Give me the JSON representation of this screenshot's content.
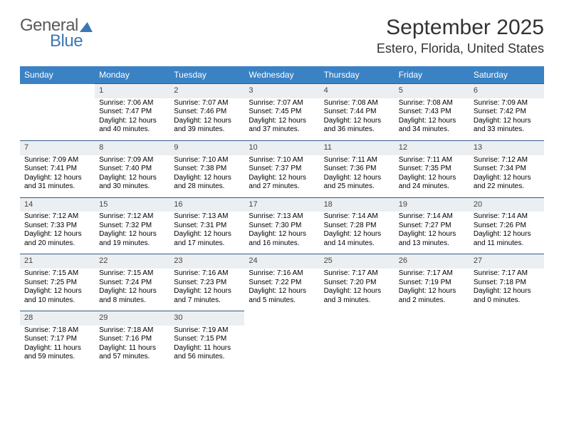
{
  "brand": {
    "part1": "General",
    "part2": "Blue",
    "color_primary": "#3a78b5",
    "color_text": "#5a5a5a"
  },
  "header": {
    "month": "September 2025",
    "location": "Estero, Florida, United States"
  },
  "colors": {
    "header_bg": "#3a82c4",
    "header_text": "#ffffff",
    "daynum_bg": "#eceff1",
    "daynum_border": "#2f5d88",
    "body_bg": "#ffffff"
  },
  "weekdays": [
    "Sunday",
    "Monday",
    "Tuesday",
    "Wednesday",
    "Thursday",
    "Friday",
    "Saturday"
  ],
  "weeks": [
    [
      null,
      {
        "n": "1",
        "sr": "Sunrise: 7:06 AM",
        "ss": "Sunset: 7:47 PM",
        "d1": "Daylight: 12 hours",
        "d2": "and 40 minutes."
      },
      {
        "n": "2",
        "sr": "Sunrise: 7:07 AM",
        "ss": "Sunset: 7:46 PM",
        "d1": "Daylight: 12 hours",
        "d2": "and 39 minutes."
      },
      {
        "n": "3",
        "sr": "Sunrise: 7:07 AM",
        "ss": "Sunset: 7:45 PM",
        "d1": "Daylight: 12 hours",
        "d2": "and 37 minutes."
      },
      {
        "n": "4",
        "sr": "Sunrise: 7:08 AM",
        "ss": "Sunset: 7:44 PM",
        "d1": "Daylight: 12 hours",
        "d2": "and 36 minutes."
      },
      {
        "n": "5",
        "sr": "Sunrise: 7:08 AM",
        "ss": "Sunset: 7:43 PM",
        "d1": "Daylight: 12 hours",
        "d2": "and 34 minutes."
      },
      {
        "n": "6",
        "sr": "Sunrise: 7:09 AM",
        "ss": "Sunset: 7:42 PM",
        "d1": "Daylight: 12 hours",
        "d2": "and 33 minutes."
      }
    ],
    [
      {
        "n": "7",
        "sr": "Sunrise: 7:09 AM",
        "ss": "Sunset: 7:41 PM",
        "d1": "Daylight: 12 hours",
        "d2": "and 31 minutes."
      },
      {
        "n": "8",
        "sr": "Sunrise: 7:09 AM",
        "ss": "Sunset: 7:40 PM",
        "d1": "Daylight: 12 hours",
        "d2": "and 30 minutes."
      },
      {
        "n": "9",
        "sr": "Sunrise: 7:10 AM",
        "ss": "Sunset: 7:38 PM",
        "d1": "Daylight: 12 hours",
        "d2": "and 28 minutes."
      },
      {
        "n": "10",
        "sr": "Sunrise: 7:10 AM",
        "ss": "Sunset: 7:37 PM",
        "d1": "Daylight: 12 hours",
        "d2": "and 27 minutes."
      },
      {
        "n": "11",
        "sr": "Sunrise: 7:11 AM",
        "ss": "Sunset: 7:36 PM",
        "d1": "Daylight: 12 hours",
        "d2": "and 25 minutes."
      },
      {
        "n": "12",
        "sr": "Sunrise: 7:11 AM",
        "ss": "Sunset: 7:35 PM",
        "d1": "Daylight: 12 hours",
        "d2": "and 24 minutes."
      },
      {
        "n": "13",
        "sr": "Sunrise: 7:12 AM",
        "ss": "Sunset: 7:34 PM",
        "d1": "Daylight: 12 hours",
        "d2": "and 22 minutes."
      }
    ],
    [
      {
        "n": "14",
        "sr": "Sunrise: 7:12 AM",
        "ss": "Sunset: 7:33 PM",
        "d1": "Daylight: 12 hours",
        "d2": "and 20 minutes."
      },
      {
        "n": "15",
        "sr": "Sunrise: 7:12 AM",
        "ss": "Sunset: 7:32 PM",
        "d1": "Daylight: 12 hours",
        "d2": "and 19 minutes."
      },
      {
        "n": "16",
        "sr": "Sunrise: 7:13 AM",
        "ss": "Sunset: 7:31 PM",
        "d1": "Daylight: 12 hours",
        "d2": "and 17 minutes."
      },
      {
        "n": "17",
        "sr": "Sunrise: 7:13 AM",
        "ss": "Sunset: 7:30 PM",
        "d1": "Daylight: 12 hours",
        "d2": "and 16 minutes."
      },
      {
        "n": "18",
        "sr": "Sunrise: 7:14 AM",
        "ss": "Sunset: 7:28 PM",
        "d1": "Daylight: 12 hours",
        "d2": "and 14 minutes."
      },
      {
        "n": "19",
        "sr": "Sunrise: 7:14 AM",
        "ss": "Sunset: 7:27 PM",
        "d1": "Daylight: 12 hours",
        "d2": "and 13 minutes."
      },
      {
        "n": "20",
        "sr": "Sunrise: 7:14 AM",
        "ss": "Sunset: 7:26 PM",
        "d1": "Daylight: 12 hours",
        "d2": "and 11 minutes."
      }
    ],
    [
      {
        "n": "21",
        "sr": "Sunrise: 7:15 AM",
        "ss": "Sunset: 7:25 PM",
        "d1": "Daylight: 12 hours",
        "d2": "and 10 minutes."
      },
      {
        "n": "22",
        "sr": "Sunrise: 7:15 AM",
        "ss": "Sunset: 7:24 PM",
        "d1": "Daylight: 12 hours",
        "d2": "and 8 minutes."
      },
      {
        "n": "23",
        "sr": "Sunrise: 7:16 AM",
        "ss": "Sunset: 7:23 PM",
        "d1": "Daylight: 12 hours",
        "d2": "and 7 minutes."
      },
      {
        "n": "24",
        "sr": "Sunrise: 7:16 AM",
        "ss": "Sunset: 7:22 PM",
        "d1": "Daylight: 12 hours",
        "d2": "and 5 minutes."
      },
      {
        "n": "25",
        "sr": "Sunrise: 7:17 AM",
        "ss": "Sunset: 7:20 PM",
        "d1": "Daylight: 12 hours",
        "d2": "and 3 minutes."
      },
      {
        "n": "26",
        "sr": "Sunrise: 7:17 AM",
        "ss": "Sunset: 7:19 PM",
        "d1": "Daylight: 12 hours",
        "d2": "and 2 minutes."
      },
      {
        "n": "27",
        "sr": "Sunrise: 7:17 AM",
        "ss": "Sunset: 7:18 PM",
        "d1": "Daylight: 12 hours",
        "d2": "and 0 minutes."
      }
    ],
    [
      {
        "n": "28",
        "sr": "Sunrise: 7:18 AM",
        "ss": "Sunset: 7:17 PM",
        "d1": "Daylight: 11 hours",
        "d2": "and 59 minutes."
      },
      {
        "n": "29",
        "sr": "Sunrise: 7:18 AM",
        "ss": "Sunset: 7:16 PM",
        "d1": "Daylight: 11 hours",
        "d2": "and 57 minutes."
      },
      {
        "n": "30",
        "sr": "Sunrise: 7:19 AM",
        "ss": "Sunset: 7:15 PM",
        "d1": "Daylight: 11 hours",
        "d2": "and 56 minutes."
      },
      null,
      null,
      null,
      null
    ]
  ]
}
